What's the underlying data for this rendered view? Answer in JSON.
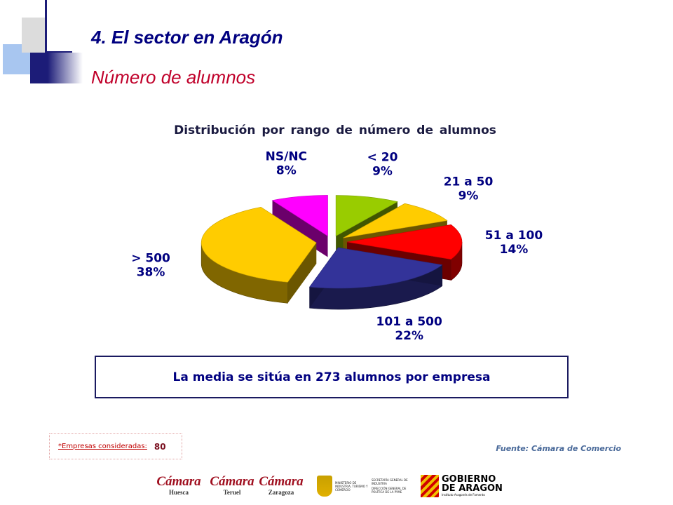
{
  "header": {
    "title": "4. El sector en Aragón",
    "subtitle": "Número de alumnos"
  },
  "chart_data": {
    "type": "pie",
    "title": "Distribución por rango de número de alumnos",
    "slices": [
      {
        "label": "< 20",
        "value_label": "9%",
        "value": 9,
        "color": "#99cc00"
      },
      {
        "label": "21 a 50",
        "value_label": "9%",
        "value": 9,
        "color": "#ffcc00"
      },
      {
        "label": "51 a 100",
        "value_label": "14%",
        "value": 14,
        "color": "#ff0000"
      },
      {
        "label": "101 a 500",
        "value_label": "22%",
        "value": 22,
        "color": "#333399"
      },
      {
        "label": "> 500",
        "value_label": "38%",
        "value": 38,
        "color": "#ffcc00"
      },
      {
        "label": "NS/NC",
        "value_label": "8%",
        "value": 8,
        "color": "#ff00ff"
      }
    ]
  },
  "summary": {
    "text": "La media se sitúa en 273 alumnos por empresa"
  },
  "footnote": {
    "label": "*Empresas consideradas:",
    "value": "80"
  },
  "source": "Fuente: Cámara de Comercio",
  "logos": {
    "camara_huesca": {
      "main": "Cámara",
      "city": "Huesca"
    },
    "camara_teruel": {
      "main": "Cámara",
      "city": "Teruel"
    },
    "camara_zaragoza": {
      "main": "Cámara",
      "city": "Zaragoza"
    },
    "ministerio": {
      "line1": "MINISTERIO DE INDUSTRIA, TURISMO Y COMERCIO",
      "line2": "SECRETARÍA GENERAL DE INDUSTRIA",
      "line3": "DIRECCIÓN GENERAL DE POLÍTICA DE LA PYME"
    },
    "gobierno": {
      "line1": "GOBIERNO",
      "line2": "DE ARAGON",
      "line3": "Instituto Aragonés de Fomento"
    }
  }
}
